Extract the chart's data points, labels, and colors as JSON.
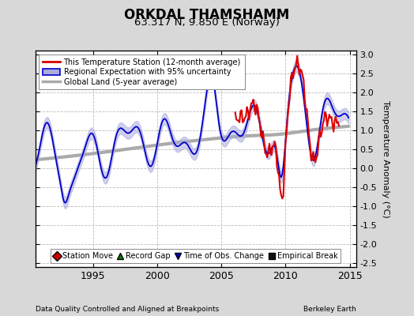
{
  "title": "ORKDAL THAMSHAMM",
  "subtitle": "63.317 N, 9.850 E (Norway)",
  "ylabel": "Temperature Anomaly (°C)",
  "xlabel_left": "Data Quality Controlled and Aligned at Breakpoints",
  "xlabel_right": "Berkeley Earth",
  "xlim": [
    1990.5,
    2015.5
  ],
  "ylim": [
    -2.6,
    3.1
  ],
  "yticks": [
    -2.5,
    -2.0,
    -1.5,
    -1.0,
    -0.5,
    0.0,
    0.5,
    1.0,
    1.5,
    2.0,
    2.5,
    3.0
  ],
  "xticks": [
    1995,
    2000,
    2005,
    2010,
    2015
  ],
  "bg_color": "#d8d8d8",
  "plot_bg_color": "#ffffff",
  "grid_color": "#bbbbbb",
  "red_color": "#dd0000",
  "blue_color": "#0000cc",
  "blue_fill_color": "#aaaadd",
  "gray_color": "#aaaaaa",
  "legend1_labels": [
    "This Temperature Station (12-month average)",
    "Regional Expectation with 95% uncertainty",
    "Global Land (5-year average)"
  ],
  "legend2_labels": [
    "Station Move",
    "Record Gap",
    "Time of Obs. Change",
    "Empirical Break"
  ]
}
